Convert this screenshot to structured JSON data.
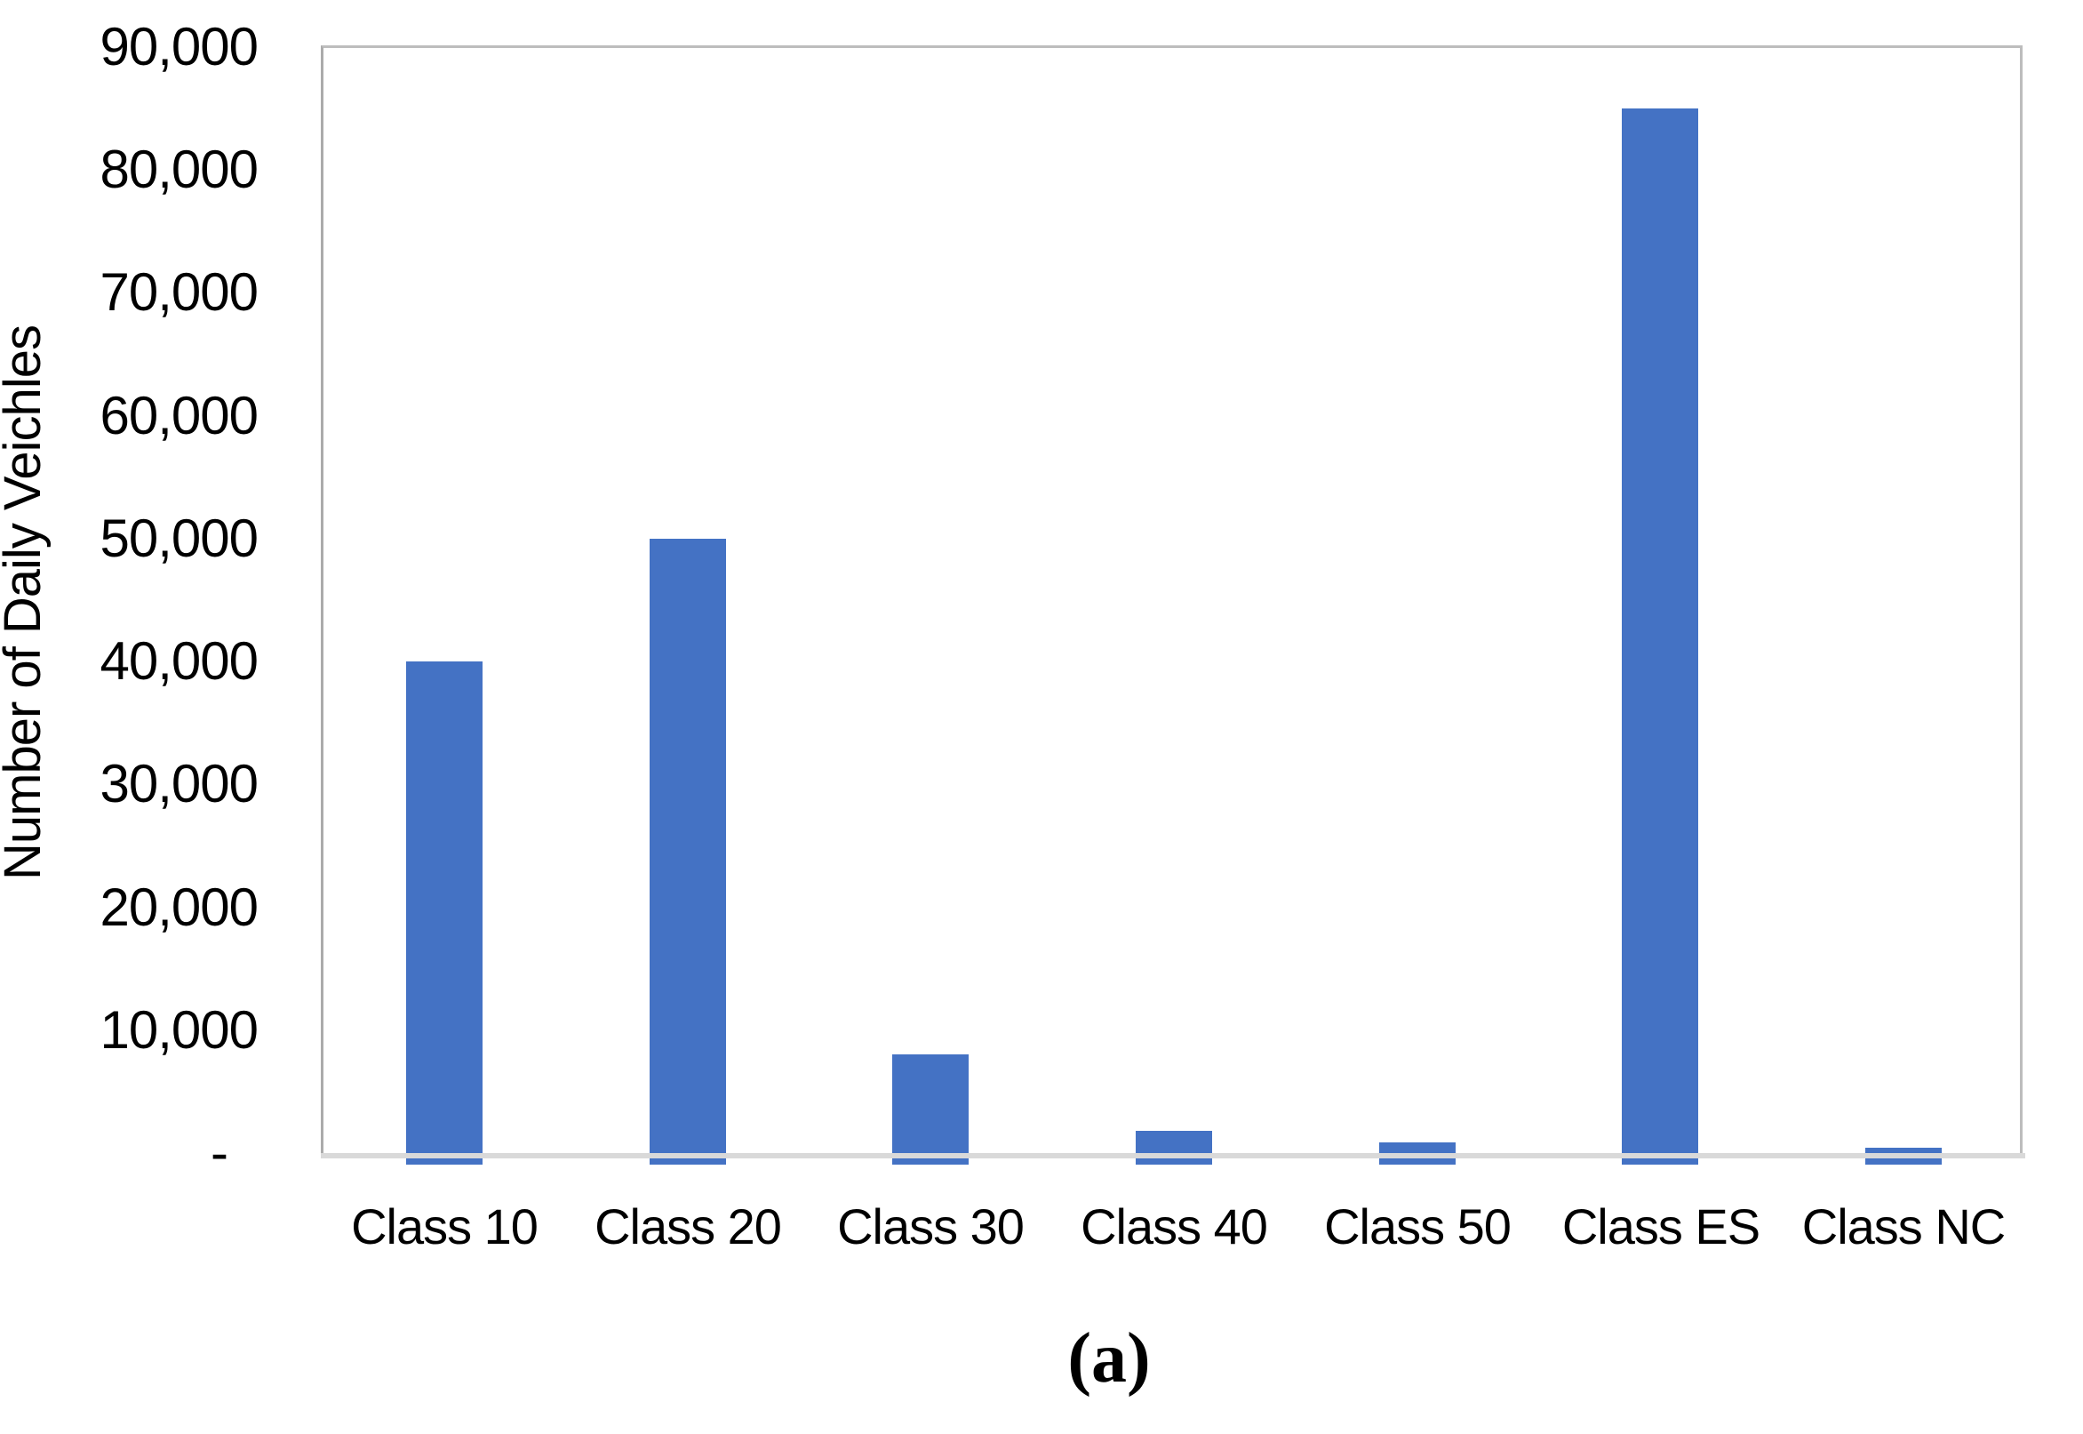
{
  "figure": {
    "caption": "(a)"
  },
  "chart_data": {
    "type": "bar",
    "title": "",
    "categories": [
      "Class 10",
      "Class 20",
      "Class 30",
      "Class 40",
      "Class 50",
      "Class ES",
      "Class NC"
    ],
    "values": [
      40000,
      50000,
      8000,
      1800,
      900,
      85000,
      400
    ],
    "xlabel": "",
    "ylabel": "Number of Daily Veichles",
    "ylim": [
      0,
      90000
    ],
    "ytick_step": 10000,
    "ytick_labels": [
      "90,000",
      "80,000",
      "70,000",
      "60,000",
      "50,000",
      "40,000",
      "30,000",
      "20,000",
      "10,000",
      "-"
    ],
    "bar_color": "#4472C4",
    "axis_line_color": "#D9D9D9",
    "plot_border_color": "#BDBDBD",
    "grid": false,
    "legend_position": "none"
  }
}
